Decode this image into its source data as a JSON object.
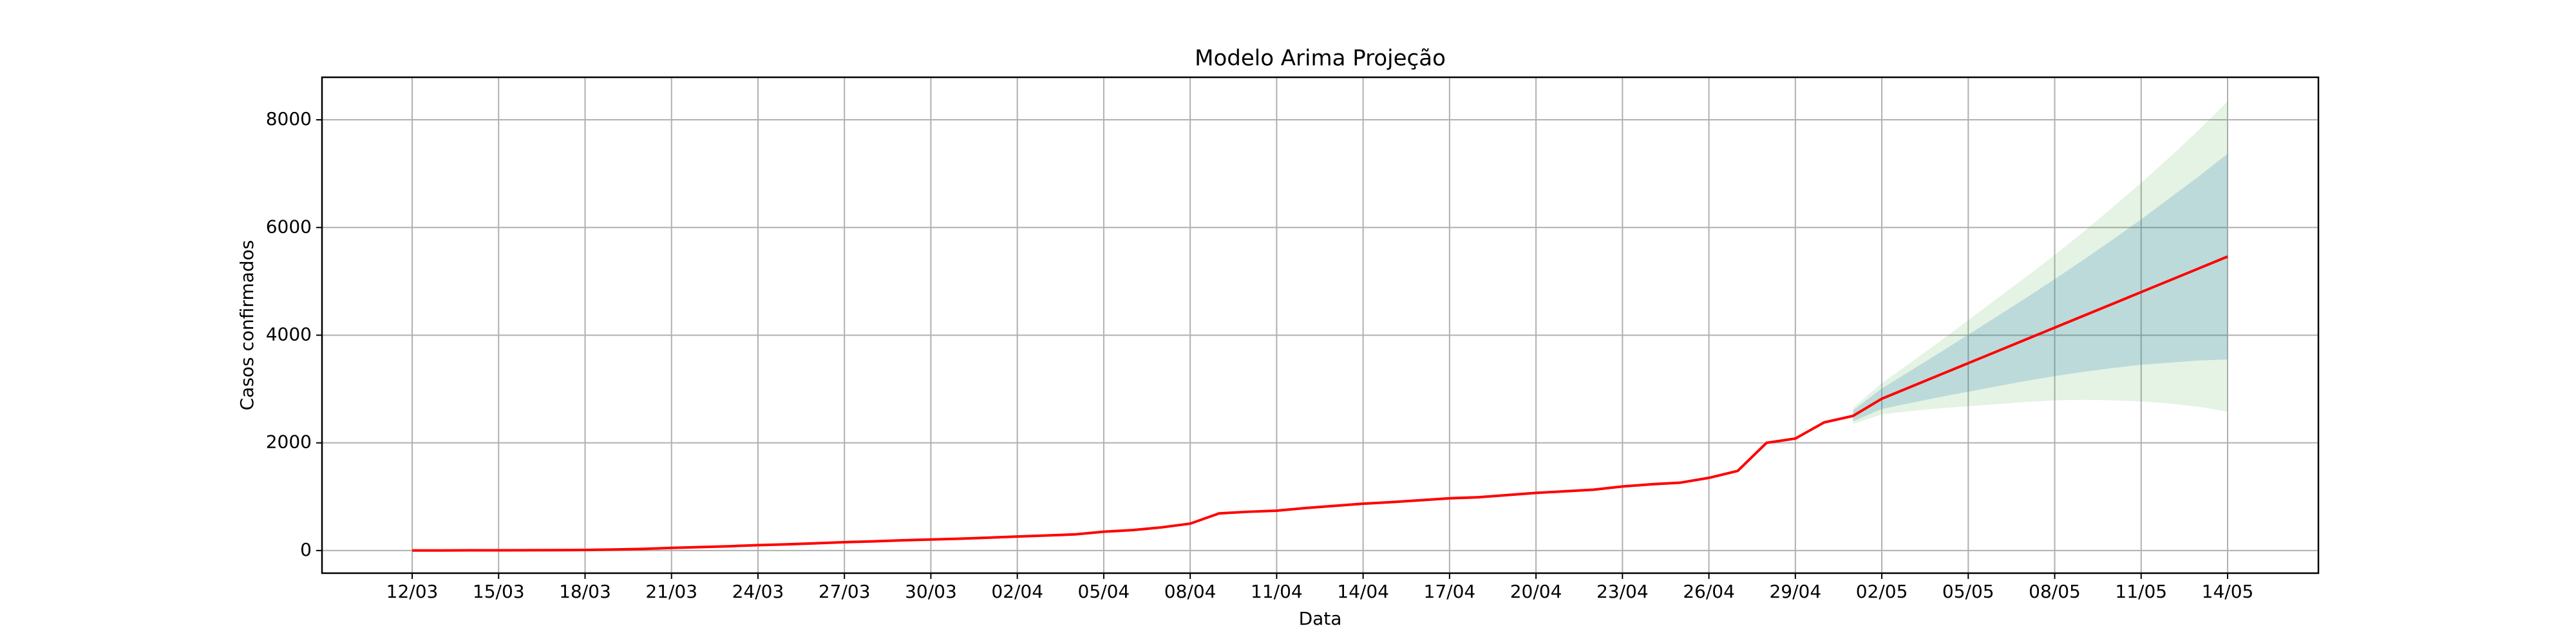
{
  "chart_data": {
    "type": "line",
    "title": "Modelo Arima Projeção",
    "xlabel": "Data",
    "ylabel": "Casos confirmados",
    "categories": [
      "12/03",
      null,
      null,
      "15/03",
      null,
      null,
      "18/03",
      null,
      null,
      "21/03",
      null,
      null,
      "24/03",
      null,
      null,
      "27/03",
      null,
      null,
      "30/03",
      null,
      null,
      "02/04",
      null,
      null,
      "05/04",
      null,
      null,
      "08/04",
      null,
      null,
      "11/04",
      null,
      null,
      "14/04",
      null,
      null,
      "17/04",
      null,
      null,
      "20/04",
      null,
      null,
      "23/04",
      null,
      null,
      "26/04",
      null,
      null,
      "29/04",
      null,
      null,
      "02/05",
      null,
      null,
      "05/05",
      null,
      null,
      "08/05",
      null,
      null,
      "11/05",
      null,
      null,
      "14/05"
    ],
    "series": [
      {
        "color": "#ff0000",
        "values": [
          1,
          2,
          4,
          5,
          6,
          8,
          10,
          20,
          30,
          50,
          65,
          80,
          100,
          115,
          135,
          155,
          170,
          190,
          205,
          220,
          240,
          260,
          280,
          300,
          350,
          380,
          430,
          500,
          690,
          720,
          740,
          790,
          830,
          870,
          900,
          935,
          970,
          990,
          1030,
          1070,
          1100,
          1130,
          1190,
          1230,
          1260,
          1350,
          1480,
          2000,
          2080,
          2380,
          2500,
          2820,
          3040,
          3260,
          3480,
          3700,
          3920,
          4140,
          4360,
          4580,
          4800,
          5020,
          5240,
          5460
        ]
      }
    ],
    "bands": [
      {
        "color": "rgba(44,160,44,0.13)",
        "lower": [
          null,
          null,
          null,
          null,
          null,
          null,
          null,
          null,
          null,
          null,
          null,
          null,
          null,
          null,
          null,
          null,
          null,
          null,
          null,
          null,
          null,
          null,
          null,
          null,
          null,
          null,
          null,
          null,
          null,
          null,
          null,
          null,
          null,
          null,
          null,
          null,
          null,
          null,
          null,
          null,
          null,
          null,
          null,
          null,
          null,
          null,
          null,
          null,
          null,
          null,
          2350,
          2530,
          2590,
          2640,
          2680,
          2720,
          2760,
          2790,
          2800,
          2790,
          2770,
          2730,
          2670,
          2580
        ],
        "upper": [
          null,
          null,
          null,
          null,
          null,
          null,
          null,
          null,
          null,
          null,
          null,
          null,
          null,
          null,
          null,
          null,
          null,
          null,
          null,
          null,
          null,
          null,
          null,
          null,
          null,
          null,
          null,
          null,
          null,
          null,
          null,
          null,
          null,
          null,
          null,
          null,
          null,
          null,
          null,
          null,
          null,
          null,
          null,
          null,
          null,
          null,
          null,
          null,
          null,
          null,
          2650,
          3110,
          3490,
          3880,
          4280,
          4680,
          5080,
          5490,
          5920,
          6370,
          6830,
          7310,
          7810,
          8340
        ]
      },
      {
        "color": "rgba(31,119,180,0.2)",
        "lower": [
          null,
          null,
          null,
          null,
          null,
          null,
          null,
          null,
          null,
          null,
          null,
          null,
          null,
          null,
          null,
          null,
          null,
          null,
          null,
          null,
          null,
          null,
          null,
          null,
          null,
          null,
          null,
          null,
          null,
          null,
          null,
          null,
          null,
          null,
          null,
          null,
          null,
          null,
          null,
          null,
          null,
          null,
          null,
          null,
          null,
          null,
          null,
          null,
          null,
          null,
          2400,
          2630,
          2740,
          2850,
          2950,
          3050,
          3150,
          3240,
          3320,
          3390,
          3450,
          3490,
          3530,
          3550
        ],
        "upper": [
          null,
          null,
          null,
          null,
          null,
          null,
          null,
          null,
          null,
          null,
          null,
          null,
          null,
          null,
          null,
          null,
          null,
          null,
          null,
          null,
          null,
          null,
          null,
          null,
          null,
          null,
          null,
          null,
          null,
          null,
          null,
          null,
          null,
          null,
          null,
          null,
          null,
          null,
          null,
          null,
          null,
          null,
          null,
          null,
          null,
          null,
          null,
          null,
          null,
          null,
          2600,
          3010,
          3340,
          3670,
          4010,
          4350,
          4690,
          5040,
          5400,
          5770,
          6150,
          6550,
          6950,
          7370
        ]
      }
    ],
    "ylim": [
      -420,
      8790
    ],
    "yticks": [
      0,
      2000,
      4000,
      6000,
      8000
    ],
    "grid": true
  }
}
